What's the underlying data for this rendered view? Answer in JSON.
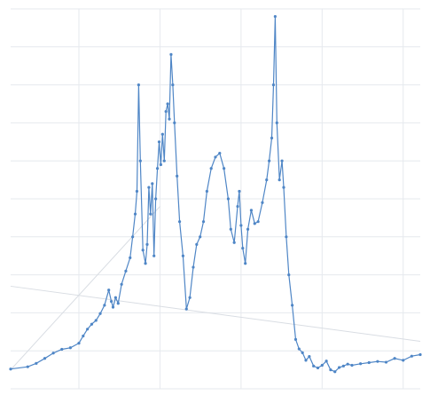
{
  "chart_data": {
    "type": "line",
    "title": "",
    "xlabel": "",
    "ylabel": "",
    "grid": true,
    "legend": "none",
    "xlim": [
      0,
      480
    ],
    "ylim": [
      0,
      100
    ],
    "x_ticks": [
      80,
      175,
      270,
      365,
      460
    ],
    "x_tick_labels": [
      "",
      "",
      "",
      "",
      ""
    ],
    "y_grid": [
      0,
      10,
      20,
      30,
      40,
      50,
      60,
      70,
      80,
      90,
      100
    ],
    "reference_lines": [
      {
        "from": [
          0,
          27.0
        ],
        "to": [
          480,
          12.5
        ]
      },
      {
        "from": [
          0,
          5.0
        ],
        "to": [
          175,
          48.0
        ]
      }
    ],
    "colors": {
      "series": "#4f86c6",
      "grid": "#e6e9ee",
      "reference": "#d9dde3"
    },
    "series": [
      {
        "x": [
          0,
          20,
          30,
          40,
          50,
          60,
          70,
          80,
          85,
          90,
          95,
          100,
          105,
          110,
          115,
          118,
          120,
          123,
          126,
          130,
          135,
          140,
          143,
          146,
          148,
          150,
          152,
          155,
          158,
          160,
          162,
          164,
          166,
          168,
          170,
          172,
          174,
          176,
          178,
          180,
          182,
          184,
          186,
          188,
          190,
          192,
          195,
          198,
          202,
          206,
          210,
          214,
          218,
          222,
          226,
          230,
          235,
          240,
          245,
          250,
          255,
          258,
          262,
          266,
          268,
          270,
          272,
          275,
          278,
          282,
          286,
          290,
          295,
          300,
          303,
          306,
          308,
          310,
          312,
          315,
          318,
          320,
          323,
          326,
          330,
          334,
          338,
          342,
          346,
          350,
          355,
          360,
          365,
          370,
          375,
          380,
          385,
          390,
          395,
          400,
          410,
          420,
          430,
          440,
          450,
          460,
          470,
          480
        ],
        "y": [
          5.2,
          5.8,
          6.7,
          8.0,
          9.4,
          10.4,
          10.8,
          12.0,
          13.9,
          15.7,
          17.0,
          18.0,
          19.8,
          22.0,
          26.0,
          23.0,
          21.5,
          24.0,
          22.5,
          27.5,
          31.0,
          34.5,
          40.0,
          46.0,
          52.0,
          80.0,
          60.0,
          36.5,
          33.0,
          38.0,
          53.0,
          46.0,
          54.0,
          35.0,
          50.0,
          58.0,
          65.0,
          59.0,
          67.0,
          60.0,
          73.0,
          75.0,
          71.0,
          88.0,
          80.0,
          70.0,
          56.0,
          44.0,
          35.0,
          21.0,
          24.0,
          32.0,
          38.0,
          40.0,
          44.0,
          52.0,
          58.0,
          61.0,
          62.0,
          58.0,
          50.0,
          42.0,
          38.5,
          48.0,
          52.0,
          43.0,
          37.0,
          33.0,
          42.0,
          47.0,
          43.5,
          44.0,
          49.0,
          55.0,
          60.0,
          66.0,
          80.0,
          98.0,
          70.0,
          55.0,
          60.0,
          53.0,
          40.0,
          30.0,
          22.0,
          13.0,
          10.5,
          9.5,
          7.5,
          8.5,
          6.0,
          5.5,
          6.2,
          7.3,
          5.0,
          4.5,
          5.6,
          6.0,
          6.5,
          6.2,
          6.6,
          6.9,
          7.2,
          7.0,
          8.0,
          7.5,
          8.6,
          9.0
        ]
      }
    ]
  }
}
